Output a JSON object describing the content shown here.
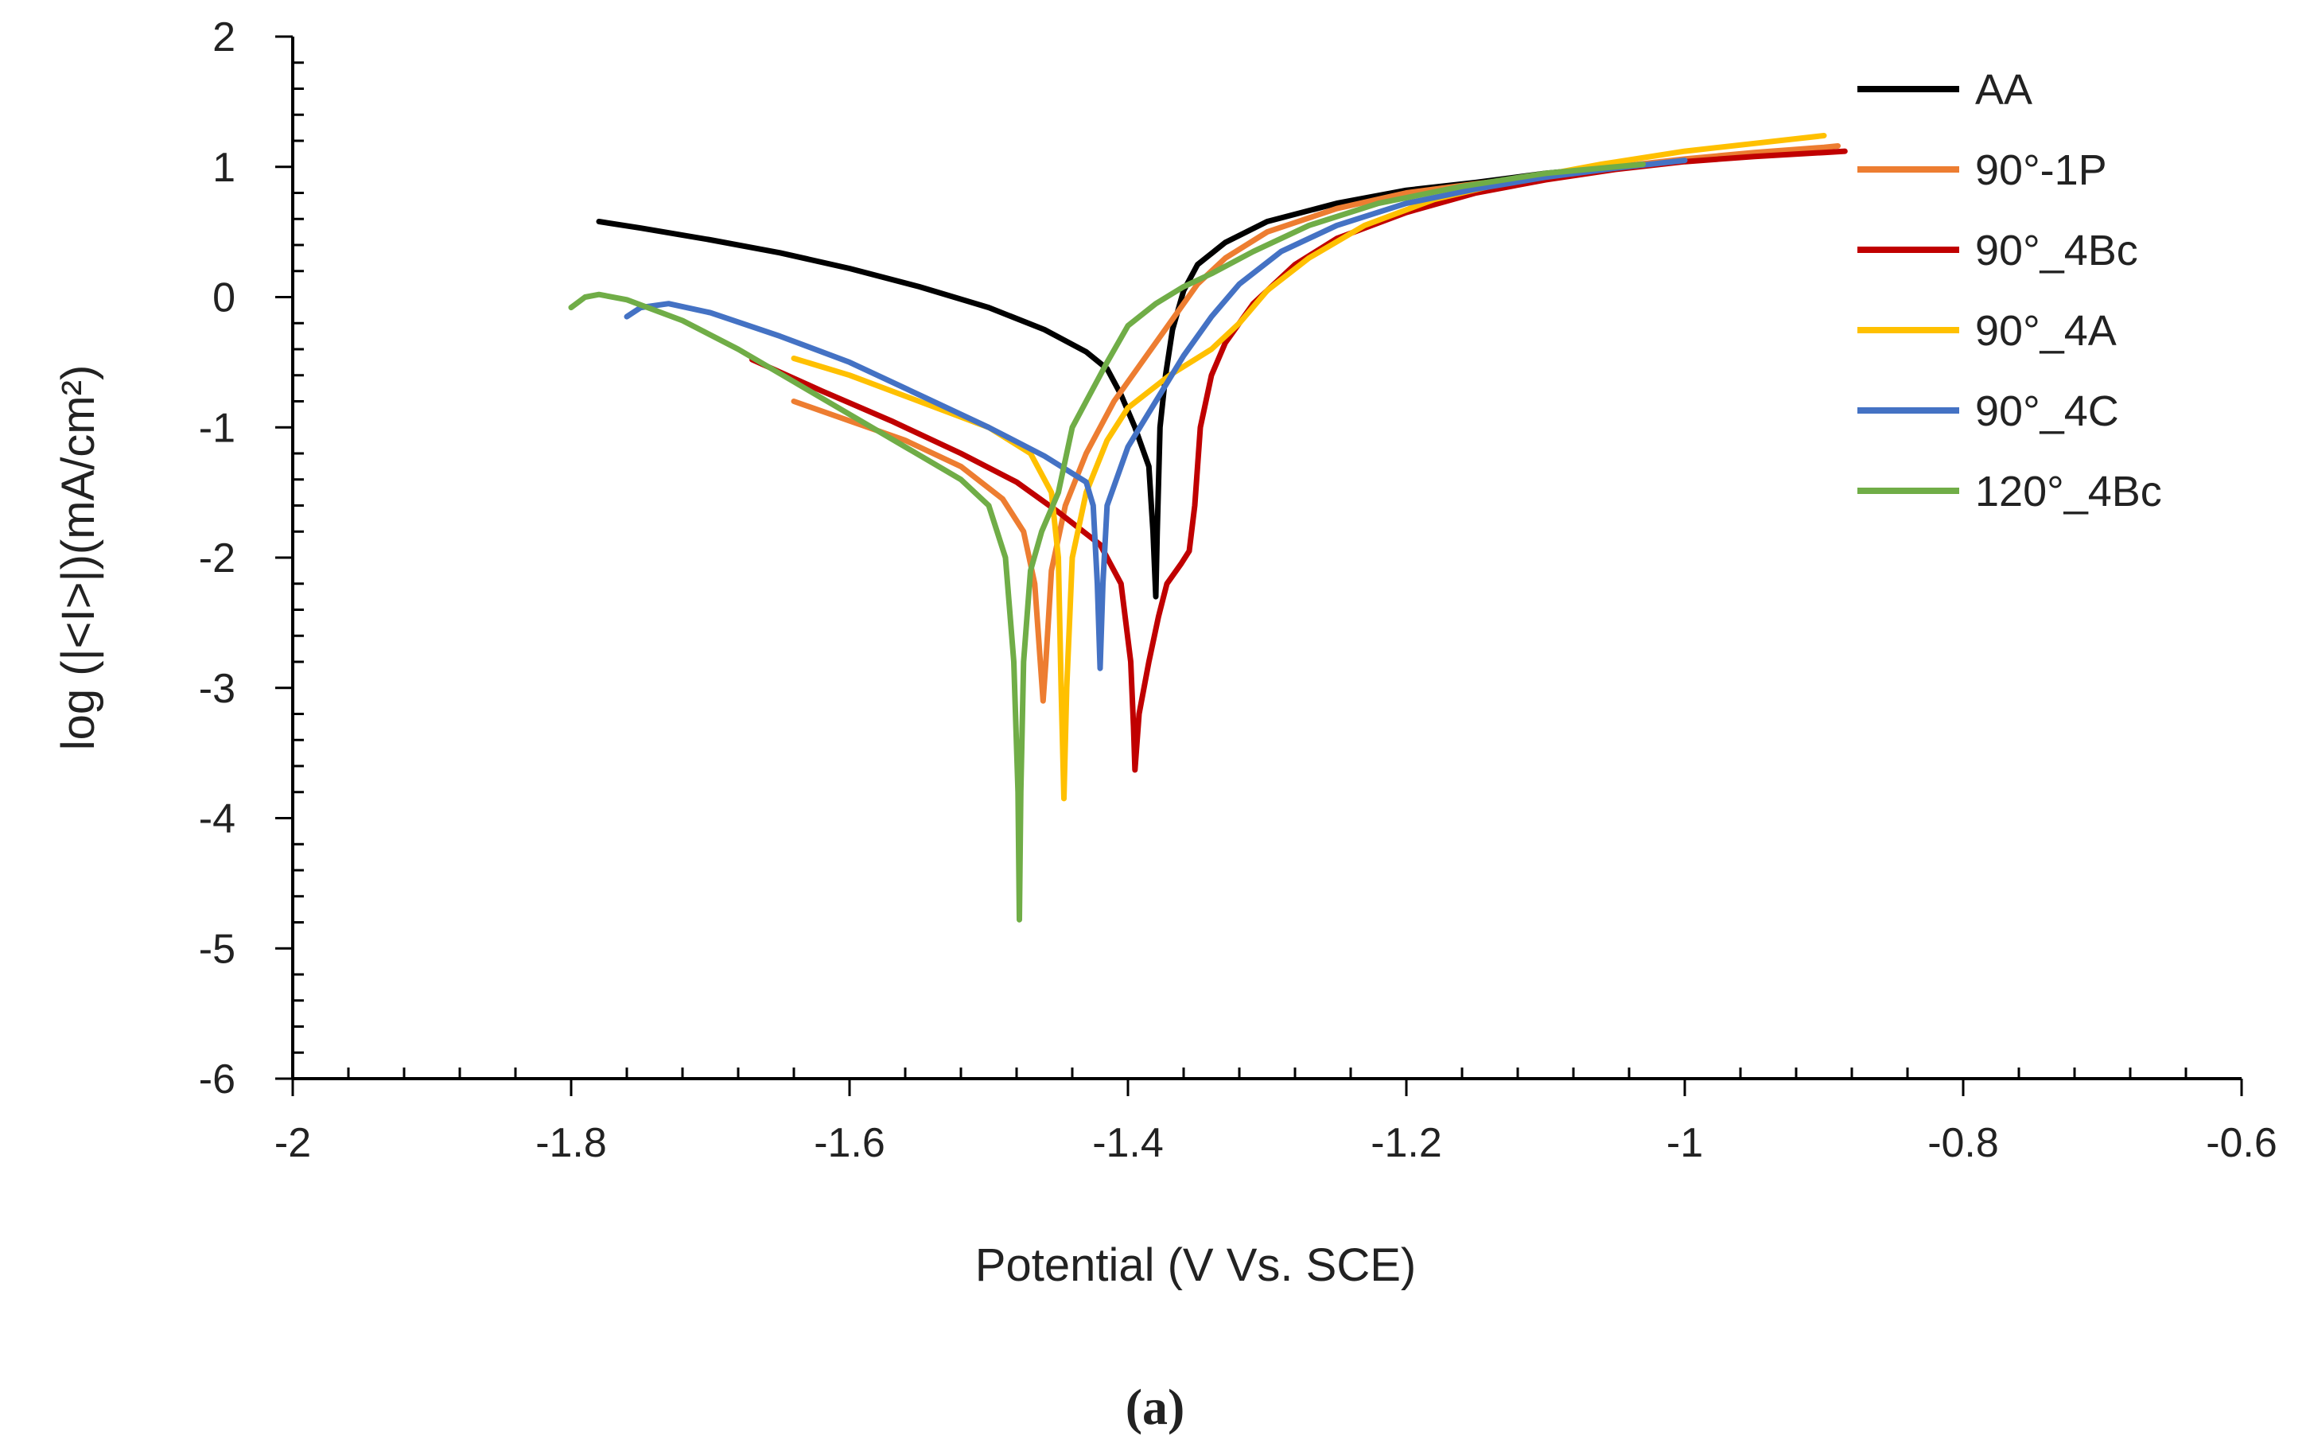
{
  "chart_data": {
    "type": "line",
    "title": "",
    "xlabel": "Potential (V Vs. SCE)",
    "ylabel": "log (|<I>|)(mA/cm²)",
    "caption": "(a)",
    "xlim": [
      -2,
      -0.6
    ],
    "ylim": [
      -6,
      2
    ],
    "x_ticks": [
      -2,
      -1.8,
      -1.6,
      -1.4,
      -1.2,
      -1,
      -0.8,
      -0.6
    ],
    "x_tick_labels": [
      "-2",
      "-1.8",
      "-1.6",
      "-1.4",
      "-1.2",
      "-1",
      "-0.8",
      "-0.6"
    ],
    "y_ticks": [
      2,
      1,
      0,
      -1,
      -2,
      -3,
      -4,
      -5,
      -6
    ],
    "y_tick_labels": [
      "2",
      "1",
      "0",
      "-1",
      "-2",
      "-3",
      "-4",
      "-5",
      "-6"
    ],
    "grid": false,
    "legend_position": "top-right",
    "series": [
      {
        "name": "AA",
        "color": "#000000",
        "points": [
          [
            -1.78,
            0.58
          ],
          [
            -1.75,
            0.53
          ],
          [
            -1.7,
            0.44
          ],
          [
            -1.65,
            0.34
          ],
          [
            -1.6,
            0.22
          ],
          [
            -1.55,
            0.08
          ],
          [
            -1.5,
            -0.08
          ],
          [
            -1.46,
            -0.25
          ],
          [
            -1.43,
            -0.42
          ],
          [
            -1.415,
            -0.55
          ],
          [
            -1.405,
            -0.75
          ],
          [
            -1.395,
            -1.0
          ],
          [
            -1.385,
            -1.3
          ],
          [
            -1.382,
            -1.8
          ],
          [
            -1.38,
            -2.3
          ],
          [
            -1.379,
            -1.8
          ],
          [
            -1.377,
            -1.0
          ],
          [
            -1.373,
            -0.6
          ],
          [
            -1.368,
            -0.25
          ],
          [
            -1.36,
            0.05
          ],
          [
            -1.35,
            0.25
          ],
          [
            -1.33,
            0.42
          ],
          [
            -1.3,
            0.58
          ],
          [
            -1.25,
            0.72
          ],
          [
            -1.2,
            0.82
          ],
          [
            -1.15,
            0.88
          ],
          [
            -1.1,
            0.95
          ],
          [
            -1.05,
            1.0
          ]
        ]
      },
      {
        "name": "90°-1P",
        "color": "#ed7d31",
        "points": [
          [
            -1.64,
            -0.8
          ],
          [
            -1.6,
            -0.95
          ],
          [
            -1.56,
            -1.1
          ],
          [
            -1.52,
            -1.3
          ],
          [
            -1.49,
            -1.55
          ],
          [
            -1.475,
            -1.8
          ],
          [
            -1.467,
            -2.2
          ],
          [
            -1.463,
            -2.8
          ],
          [
            -1.461,
            -3.1
          ],
          [
            -1.459,
            -2.8
          ],
          [
            -1.455,
            -2.1
          ],
          [
            -1.445,
            -1.6
          ],
          [
            -1.43,
            -1.2
          ],
          [
            -1.41,
            -0.8
          ],
          [
            -1.39,
            -0.5
          ],
          [
            -1.37,
            -0.2
          ],
          [
            -1.35,
            0.1
          ],
          [
            -1.33,
            0.3
          ],
          [
            -1.3,
            0.5
          ],
          [
            -1.25,
            0.68
          ],
          [
            -1.2,
            0.8
          ],
          [
            -1.15,
            0.87
          ],
          [
            -1.1,
            0.93
          ],
          [
            -1.05,
            1.0
          ],
          [
            -1.0,
            1.06
          ],
          [
            -0.95,
            1.11
          ],
          [
            -0.9,
            1.15
          ],
          [
            -0.89,
            1.16
          ]
        ]
      },
      {
        "name": "90°_4Bc",
        "color": "#c00000",
        "points": [
          [
            -1.67,
            -0.48
          ],
          [
            -1.62,
            -0.72
          ],
          [
            -1.57,
            -0.95
          ],
          [
            -1.52,
            -1.2
          ],
          [
            -1.48,
            -1.42
          ],
          [
            -1.45,
            -1.65
          ],
          [
            -1.42,
            -1.9
          ],
          [
            -1.405,
            -2.2
          ],
          [
            -1.398,
            -2.8
          ],
          [
            -1.396,
            -3.3
          ],
          [
            -1.395,
            -3.63
          ],
          [
            -1.392,
            -3.2
          ],
          [
            -1.385,
            -2.8
          ],
          [
            -1.378,
            -2.45
          ],
          [
            -1.372,
            -2.2
          ],
          [
            -1.362,
            -2.05
          ],
          [
            -1.356,
            -1.95
          ],
          [
            -1.352,
            -1.6
          ],
          [
            -1.348,
            -1.0
          ],
          [
            -1.34,
            -0.6
          ],
          [
            -1.33,
            -0.35
          ],
          [
            -1.31,
            -0.05
          ],
          [
            -1.28,
            0.25
          ],
          [
            -1.25,
            0.45
          ],
          [
            -1.2,
            0.65
          ],
          [
            -1.15,
            0.8
          ],
          [
            -1.1,
            0.9
          ],
          [
            -1.05,
            0.98
          ],
          [
            -1.0,
            1.04
          ],
          [
            -0.95,
            1.08
          ],
          [
            -0.9,
            1.11
          ],
          [
            -0.885,
            1.12
          ]
        ]
      },
      {
        "name": "90°_4A",
        "color": "#ffc000",
        "points": [
          [
            -1.64,
            -0.47
          ],
          [
            -1.6,
            -0.6
          ],
          [
            -1.55,
            -0.8
          ],
          [
            -1.5,
            -1.0
          ],
          [
            -1.47,
            -1.2
          ],
          [
            -1.455,
            -1.5
          ],
          [
            -1.45,
            -2.0
          ],
          [
            -1.448,
            -3.0
          ],
          [
            -1.446,
            -3.85
          ],
          [
            -1.444,
            -3.0
          ],
          [
            -1.44,
            -2.0
          ],
          [
            -1.43,
            -1.5
          ],
          [
            -1.415,
            -1.1
          ],
          [
            -1.4,
            -0.85
          ],
          [
            -1.37,
            -0.6
          ],
          [
            -1.34,
            -0.4
          ],
          [
            -1.32,
            -0.2
          ],
          [
            -1.3,
            0.05
          ],
          [
            -1.27,
            0.3
          ],
          [
            -1.23,
            0.55
          ],
          [
            -1.18,
            0.75
          ],
          [
            -1.12,
            0.9
          ],
          [
            -1.06,
            1.02
          ],
          [
            -1.0,
            1.12
          ],
          [
            -0.95,
            1.18
          ],
          [
            -0.9,
            1.24
          ]
        ]
      },
      {
        "name": "90°_4C",
        "color": "#4472c4",
        "points": [
          [
            -1.76,
            -0.15
          ],
          [
            -1.75,
            -0.08
          ],
          [
            -1.73,
            -0.05
          ],
          [
            -1.7,
            -0.12
          ],
          [
            -1.65,
            -0.3
          ],
          [
            -1.6,
            -0.5
          ],
          [
            -1.55,
            -0.75
          ],
          [
            -1.5,
            -1.0
          ],
          [
            -1.46,
            -1.22
          ],
          [
            -1.43,
            -1.42
          ],
          [
            -1.425,
            -1.6
          ],
          [
            -1.422,
            -2.2
          ],
          [
            -1.42,
            -2.85
          ],
          [
            -1.418,
            -2.2
          ],
          [
            -1.415,
            -1.6
          ],
          [
            -1.4,
            -1.15
          ],
          [
            -1.38,
            -0.8
          ],
          [
            -1.36,
            -0.45
          ],
          [
            -1.34,
            -0.15
          ],
          [
            -1.32,
            0.1
          ],
          [
            -1.29,
            0.35
          ],
          [
            -1.25,
            0.55
          ],
          [
            -1.2,
            0.72
          ],
          [
            -1.15,
            0.83
          ],
          [
            -1.1,
            0.92
          ],
          [
            -1.05,
            0.99
          ],
          [
            -1.0,
            1.05
          ]
        ]
      },
      {
        "name": "120°_4Bc",
        "color": "#70ad47",
        "points": [
          [
            -1.8,
            -0.08
          ],
          [
            -1.79,
            0.0
          ],
          [
            -1.78,
            0.02
          ],
          [
            -1.76,
            -0.02
          ],
          [
            -1.72,
            -0.18
          ],
          [
            -1.68,
            -0.4
          ],
          [
            -1.64,
            -0.65
          ],
          [
            -1.6,
            -0.9
          ],
          [
            -1.56,
            -1.15
          ],
          [
            -1.52,
            -1.4
          ],
          [
            -1.5,
            -1.6
          ],
          [
            -1.488,
            -2.0
          ],
          [
            -1.482,
            -2.8
          ],
          [
            -1.479,
            -3.8
          ],
          [
            -1.478,
            -4.78
          ],
          [
            -1.477,
            -3.8
          ],
          [
            -1.475,
            -2.8
          ],
          [
            -1.47,
            -2.1
          ],
          [
            -1.462,
            -1.8
          ],
          [
            -1.45,
            -1.5
          ],
          [
            -1.44,
            -1.0
          ],
          [
            -1.43,
            -0.8
          ],
          [
            -1.415,
            -0.5
          ],
          [
            -1.4,
            -0.22
          ],
          [
            -1.38,
            -0.05
          ],
          [
            -1.36,
            0.08
          ],
          [
            -1.34,
            0.18
          ],
          [
            -1.31,
            0.35
          ],
          [
            -1.27,
            0.55
          ],
          [
            -1.22,
            0.72
          ],
          [
            -1.16,
            0.85
          ],
          [
            -1.1,
            0.95
          ],
          [
            -1.03,
            1.02
          ]
        ]
      }
    ]
  }
}
